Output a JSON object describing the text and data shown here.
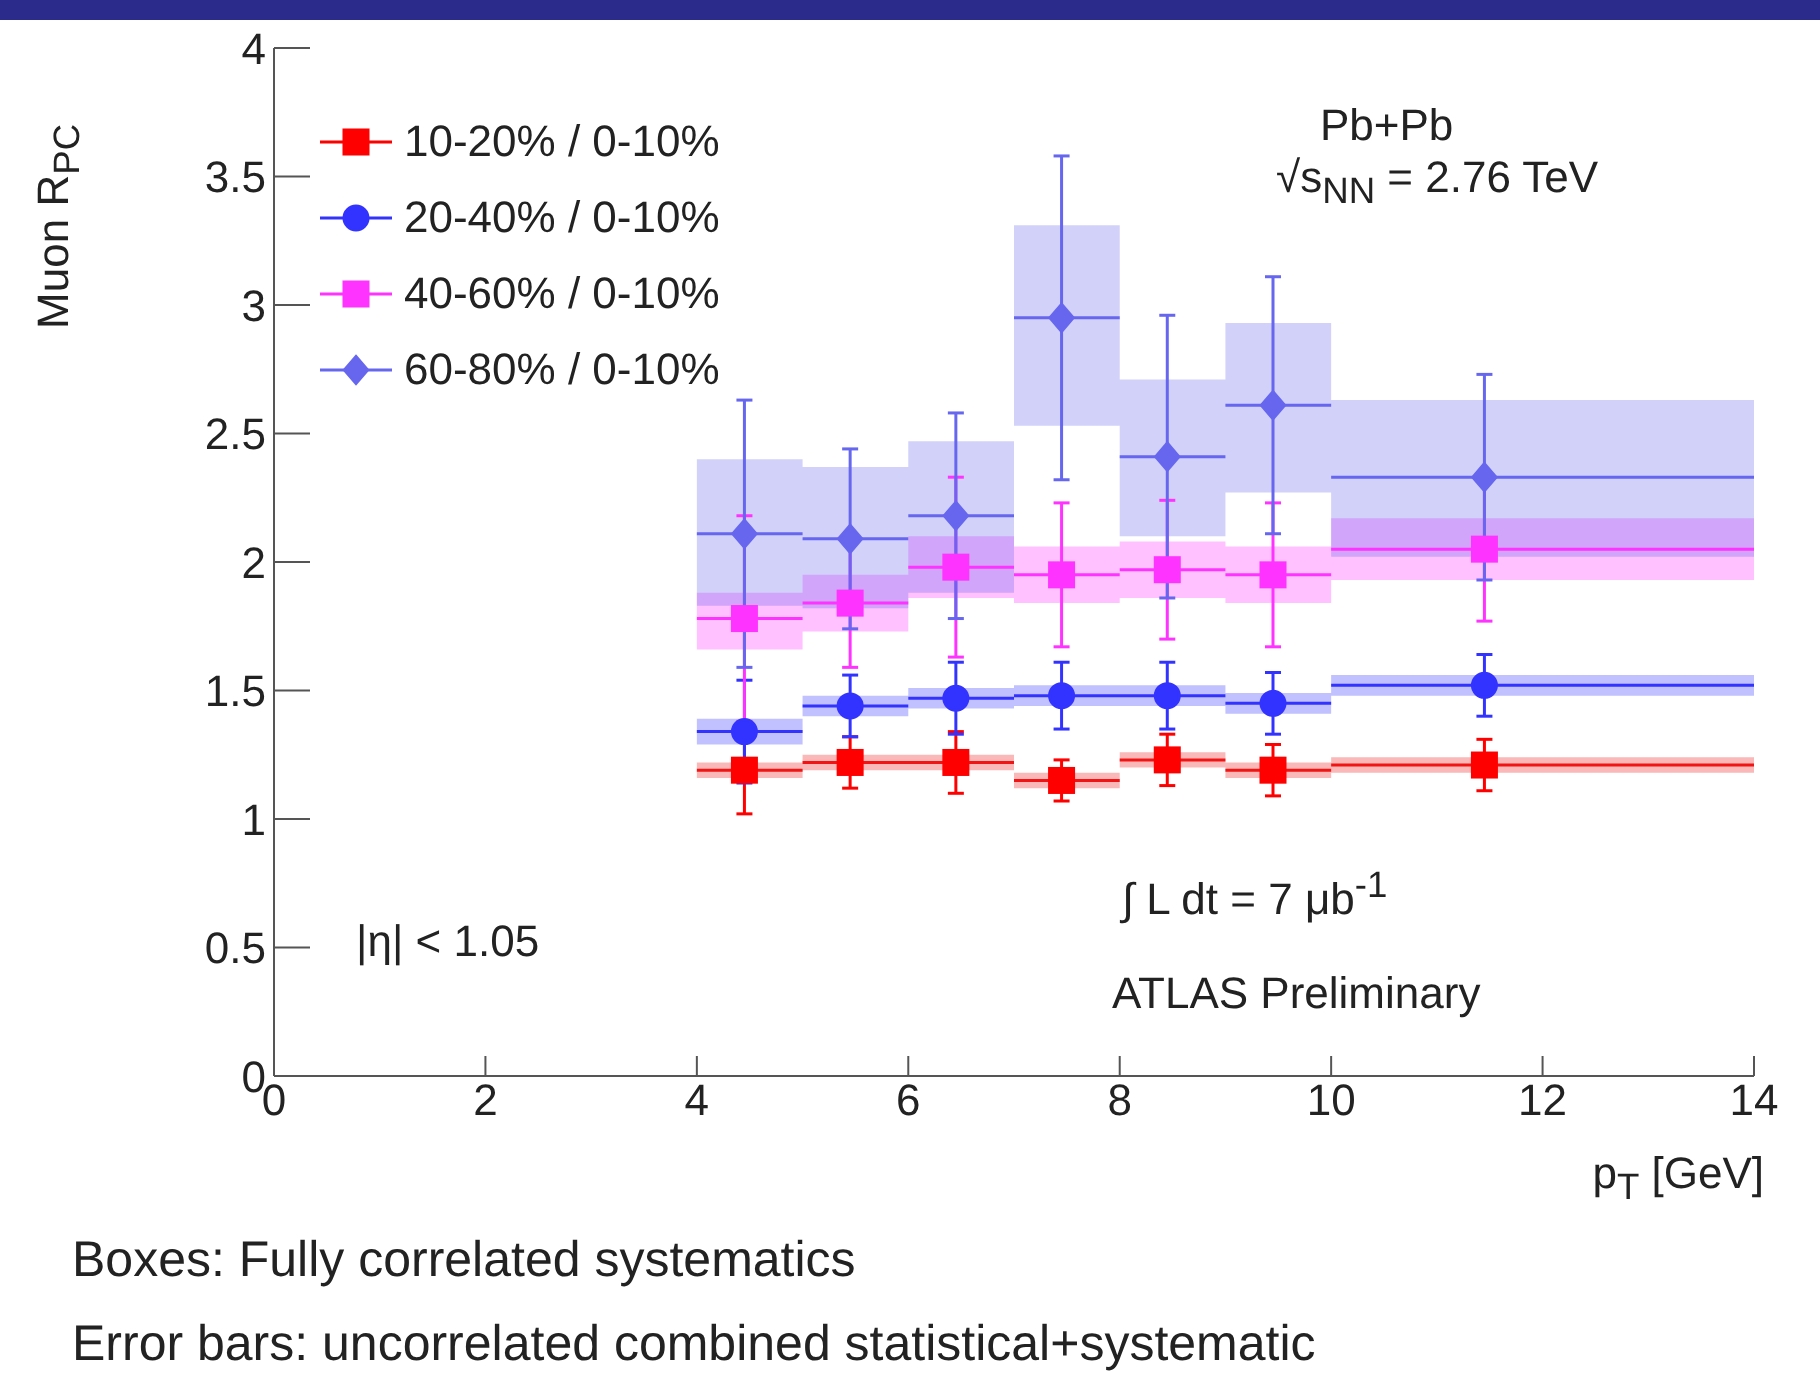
{
  "chart_data": {
    "type": "scatter",
    "xlabel": "p$_{T}$ [GeV]",
    "ylabel": "Muon R$_{PC}$",
    "x": [
      4.45,
      5.45,
      6.45,
      7.45,
      8.45,
      9.45,
      11.45
    ],
    "series": [
      {
        "type": "line",
        "color": "#f01414",
        "x": [
          4,
          5,
          5,
          6,
          6,
          7,
          7,
          8,
          8,
          9,
          9,
          10,
          10,
          14
        ],
        "values": [
          1.19,
          1.19,
          1.22,
          1.22,
          1.22,
          1.22,
          1.15,
          1.15,
          1.23,
          1.23,
          1.19,
          1.19,
          1.21,
          1.21
        ],
        "lower": [
          1.16,
          1.16,
          1.19,
          1.19,
          1.19,
          1.19,
          1.12,
          1.12,
          1.2,
          1.2,
          1.16,
          1.16,
          1.18,
          1.18
        ],
        "upper": [
          1.22,
          1.22,
          1.25,
          1.25,
          1.25,
          1.25,
          1.18,
          1.18,
          1.26,
          1.26,
          1.22,
          1.22,
          1.24,
          1.24
        ]
      },
      {
        "type": "line",
        "color": "#3333ff",
        "x": [
          4,
          5,
          5,
          6,
          6,
          7,
          7,
          8,
          8,
          9,
          9,
          10,
          10,
          14
        ],
        "values": [
          1.34,
          1.34,
          1.44,
          1.44,
          1.47,
          1.47,
          1.48,
          1.48,
          1.48,
          1.48,
          1.45,
          1.45,
          1.52,
          1.52
        ],
        "lower": [
          1.29,
          1.29,
          1.4,
          1.4,
          1.43,
          1.43,
          1.44,
          1.44,
          1.44,
          1.44,
          1.41,
          1.41,
          1.48,
          1.48
        ],
        "upper": [
          1.39,
          1.39,
          1.48,
          1.48,
          1.51,
          1.51,
          1.52,
          1.52,
          1.52,
          1.52,
          1.49,
          1.49,
          1.56,
          1.56
        ]
      },
      {
        "type": "line",
        "color": "#ff33ff",
        "x": [
          4,
          5,
          5,
          6,
          6,
          7,
          7,
          8,
          8,
          9,
          9,
          10,
          10,
          14
        ],
        "values": [
          1.78,
          1.78,
          1.84,
          1.84,
          1.98,
          1.98,
          1.95,
          1.95,
          1.97,
          1.97,
          1.95,
          1.95,
          2.05,
          2.05
        ],
        "lower": [
          1.66,
          1.66,
          1.73,
          1.73,
          1.86,
          1.86,
          1.84,
          1.84,
          1.86,
          1.86,
          1.84,
          1.84,
          1.93,
          1.93
        ],
        "upper": [
          1.88,
          1.88,
          1.95,
          1.95,
          2.1,
          2.1,
          2.06,
          2.06,
          2.08,
          2.08,
          2.06,
          2.06,
          2.17,
          2.17
        ]
      },
      {
        "type": "line",
        "color": "#6666ee",
        "x": [
          4,
          5,
          5,
          6,
          6,
          7,
          7,
          8,
          8,
          9,
          9,
          10,
          10,
          14
        ],
        "values": [
          2.11,
          2.11,
          2.09,
          2.09,
          2.18,
          2.18,
          2.95,
          2.95,
          2.41,
          2.41,
          2.61,
          2.61,
          2.33,
          2.33
        ],
        "lower": [
          1.83,
          1.83,
          1.82,
          1.82,
          1.88,
          1.88,
          2.53,
          2.53,
          2.1,
          2.1,
          2.27,
          2.27,
          2.02,
          2.02
        ],
        "upper": [
          2.4,
          2.4,
          2.37,
          2.37,
          2.47,
          2.47,
          3.31,
          3.31,
          2.71,
          2.71,
          2.93,
          2.93,
          2.63,
          2.63
        ]
      },
      {
        "name": "10-20% / 0-10%",
        "color": "#ff0000",
        "marker": "square",
        "values": [
          1.19,
          1.22,
          1.22,
          1.15,
          1.23,
          1.19,
          1.21
        ],
        "errors": [
          0.17,
          0.1,
          0.12,
          0.08,
          0.1,
          0.1,
          0.1
        ]
      },
      {
        "name": "20-40% / 0-10%",
        "color": "#3333ff",
        "marker": "circle",
        "values": [
          1.34,
          1.44,
          1.47,
          1.48,
          1.48,
          1.45,
          1.52
        ],
        "errors": [
          0.2,
          0.12,
          0.14,
          0.13,
          0.13,
          0.12,
          0.12
        ]
      },
      {
        "name": "40-60% / 0-10%",
        "color": "#ff33ff",
        "marker": "square",
        "values": [
          1.78,
          1.84,
          1.98,
          1.95,
          1.97,
          1.95,
          2.05
        ],
        "errors": [
          0.4,
          0.25,
          0.35,
          0.28,
          0.27,
          0.28,
          0.28
        ]
      },
      {
        "name": "60-80% / 0-10%",
        "color": "#6666ee",
        "marker": "diamond",
        "values": [
          2.11,
          2.09,
          2.18,
          2.95,
          2.41,
          2.61,
          2.33
        ],
        "errors": [
          0.52,
          0.35,
          0.4,
          0.63,
          0.55,
          0.5,
          0.4
        ]
      }
    ],
    "xlim": [
      0,
      14
    ],
    "xticks": [
      0,
      2,
      4,
      6,
      8,
      10,
      12,
      14
    ],
    "ylim": [
      0,
      4
    ],
    "yticks": [
      0,
      0.5,
      1,
      1.5,
      2,
      2.5,
      3,
      3.5,
      4
    ],
    "legend": "top left",
    "grid": false,
    "annotations": [
      "Pb+Pb",
      "√s$_{NN}$ = 2.76 TeV",
      "|η| < 1.05",
      "∫ L dt = 7 μb$^{-1}$",
      "ATLAS Preliminary",
      "Boxes: Fully correlated systematics",
      "Error bars: uncorrelated combined statistical+systematic"
    ]
  }
}
